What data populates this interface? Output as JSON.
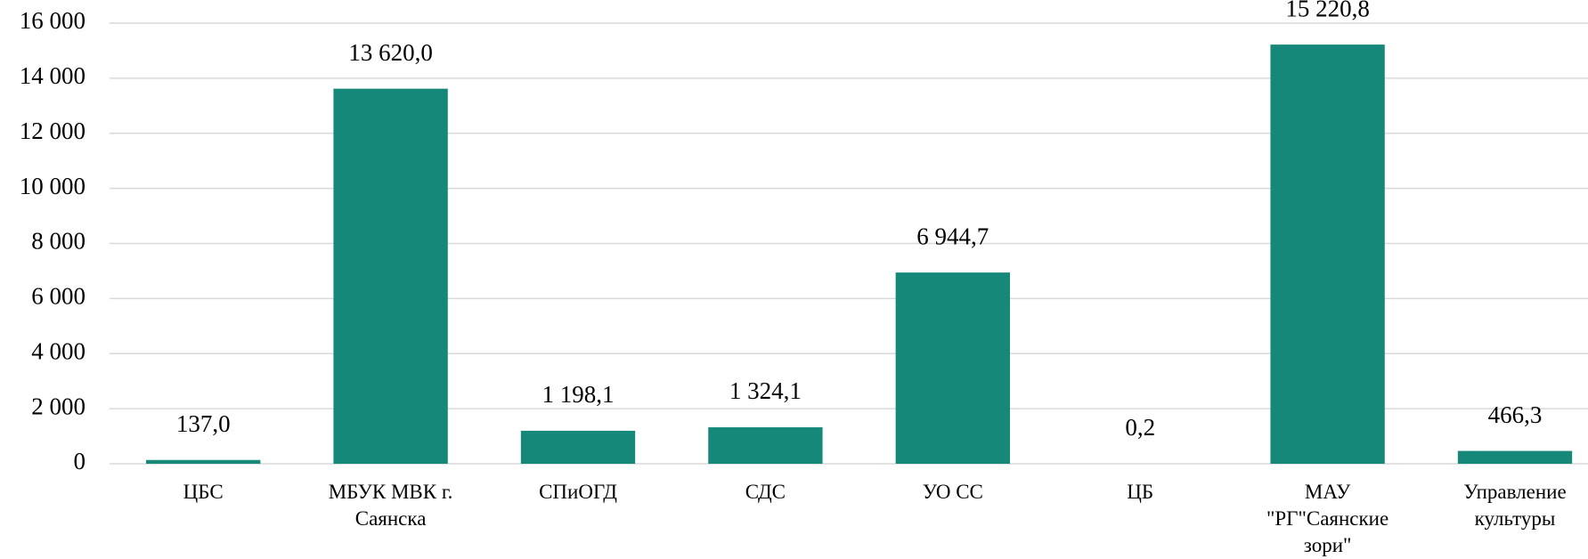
{
  "chart_data": {
    "type": "bar",
    "categories": [
      "ЦБС",
      "МБУК МВК г. Саянска",
      "СПиОГД",
      "СДС",
      "УО СС",
      "ЦБ",
      "МАУ \"РГ\"Саянские зори\"",
      "Управление культуры"
    ],
    "values": [
      137.0,
      13620.0,
      1198.1,
      1324.1,
      6944.7,
      0.2,
      15220.8,
      466.3
    ],
    "value_labels": [
      "137,0",
      "13 620,0",
      "1 198,1",
      "1 324,1",
      "6 944,7",
      "0,2",
      "15 220,8",
      "466,3"
    ],
    "color": "#16887a",
    "ylim": [
      0,
      16000
    ],
    "yticks": [
      0,
      {
        "value": 2000,
        "label": "2 000"
      },
      {
        "value": 4000,
        "label": "4 000"
      },
      {
        "value": 6000,
        "label": "6 000"
      },
      {
        "value": 8000,
        "label": "8 000"
      },
      {
        "value": 10000,
        "label": "10 000"
      },
      {
        "value": 12000,
        "label": "12 000"
      },
      {
        "value": 14000,
        "label": "14 000"
      },
      {
        "value": 16000,
        "label": "16 000"
      }
    ],
    "grid": true
  }
}
